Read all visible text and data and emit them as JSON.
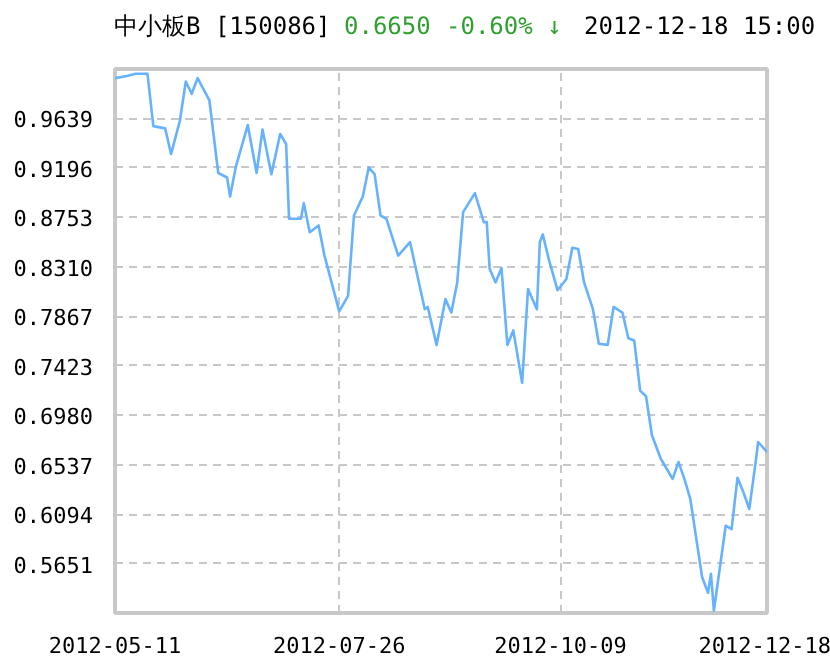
{
  "chart_data": {
    "type": "line",
    "title": "中小板B [150086]",
    "annotations": [
      "0.6650",
      "-0.60% ↓",
      "2012-12-18 15:00"
    ],
    "x": [
      "2012-05-11",
      "2012-05-15",
      "2012-05-18",
      "2012-05-22",
      "2012-05-24",
      "2012-05-28",
      "2012-05-30",
      "2012-06-02",
      "2012-06-04",
      "2012-06-06",
      "2012-06-08",
      "2012-06-12",
      "2012-06-15",
      "2012-06-18",
      "2012-06-19",
      "2012-06-21",
      "2012-06-25",
      "2012-06-28",
      "2012-06-30",
      "2012-07-03",
      "2012-07-06",
      "2012-07-08",
      "2012-07-09",
      "2012-07-13",
      "2012-07-14",
      "2012-07-16",
      "2012-07-19",
      "2012-07-21",
      "2012-07-26",
      "2012-07-29",
      "2012-07-31",
      "2012-08-03",
      "2012-08-05",
      "2012-08-07",
      "2012-08-09",
      "2012-08-11",
      "2012-08-15",
      "2012-08-19",
      "2012-08-24",
      "2012-08-25",
      "2012-08-28",
      "2012-08-31",
      "2012-09-02",
      "2012-09-04",
      "2012-09-06",
      "2012-09-10",
      "2012-09-13",
      "2012-09-14",
      "2012-09-15",
      "2012-09-17",
      "2012-09-19",
      "2012-09-21",
      "2012-09-23",
      "2012-09-26",
      "2012-09-28",
      "2012-10-01",
      "2012-10-02",
      "2012-10-03",
      "2012-10-05",
      "2012-10-08",
      "2012-10-11",
      "2012-10-13",
      "2012-10-15",
      "2012-10-17",
      "2012-10-20",
      "2012-10-22",
      "2012-10-25",
      "2012-10-27",
      "2012-10-30",
      "2012-11-01",
      "2012-11-03",
      "2012-11-05",
      "2012-11-07",
      "2012-11-09",
      "2012-11-12",
      "2012-11-16",
      "2012-11-18",
      "2012-11-20",
      "2012-11-22",
      "2012-11-26",
      "2012-11-28",
      "2012-11-29",
      "2012-11-30",
      "2012-12-04",
      "2012-12-06",
      "2012-12-08",
      "2012-12-10",
      "2012-12-12",
      "2012-12-14",
      "2012-12-15",
      "2012-12-18"
    ],
    "series": [
      {
        "color": "#66b2ff",
        "values": [
          1.0,
          1.002,
          1.004,
          1.004,
          0.957,
          0.955,
          0.932,
          0.962,
          0.997,
          0.986,
          1.0,
          0.98,
          0.915,
          0.911,
          0.894,
          0.921,
          0.958,
          0.915,
          0.954,
          0.914,
          0.95,
          0.941,
          0.874,
          0.874,
          0.888,
          0.862,
          0.868,
          0.841,
          0.791,
          0.805,
          0.877,
          0.894,
          0.92,
          0.914,
          0.877,
          0.874,
          0.841,
          0.853,
          0.793,
          0.795,
          0.761,
          0.802,
          0.79,
          0.817,
          0.88,
          0.897,
          0.871,
          0.871,
          0.829,
          0.817,
          0.83,
          0.761,
          0.774,
          0.727,
          0.811,
          0.793,
          0.853,
          0.86,
          0.838,
          0.81,
          0.82,
          0.848,
          0.847,
          0.817,
          0.793,
          0.762,
          0.761,
          0.795,
          0.79,
          0.767,
          0.765,
          0.72,
          0.715,
          0.68,
          0.659,
          0.641,
          0.656,
          0.641,
          0.623,
          0.553,
          0.539,
          0.556,
          0.523,
          0.599,
          0.596,
          0.642,
          0.629,
          0.614,
          0.653,
          0.674,
          0.665
        ]
      }
    ],
    "xlim": [
      "2012-05-11",
      "2012-12-18"
    ],
    "xticks": [
      "2012-05-11",
      "2012-07-26",
      "2012-10-09",
      "2012-12-18"
    ],
    "ylim": [
      0.5208,
      1.0082
    ],
    "yticks": [
      0.5651,
      0.6094,
      0.6537,
      {
        "value": 0.698,
        "label": "0.6980"
      },
      0.7423,
      0.7867,
      {
        "value": 0.831,
        "label": "0.8310"
      },
      0.8753,
      0.9196,
      0.9639
    ],
    "grid": true,
    "marker": "none",
    "line_style": "solid"
  }
}
